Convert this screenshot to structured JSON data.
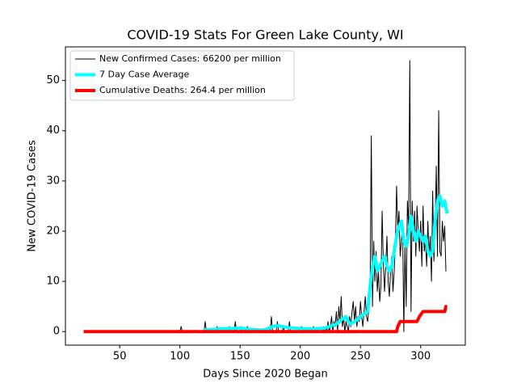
{
  "chart_data": {
    "type": "line",
    "title": "COVID-19 Stats For Green Lake County, WI",
    "xlabel": "Days Since 2020 Began",
    "ylabel": "New COVID-19 Cases",
    "xlim": [
      4.9,
      337.1
    ],
    "xticks": [
      50,
      100,
      150,
      200,
      250,
      300
    ],
    "ylim": [
      -2.7,
      56.7
    ],
    "yticks": [
      0,
      10,
      20,
      30,
      40,
      50
    ],
    "grid": false,
    "legend": "upper left",
    "series": [
      {
        "name": "New Confirmed Cases: 66200 per million",
        "color": "#000000",
        "linewidth": 1,
        "x": [
          20,
          100,
          101,
          102,
          120,
          121,
          122,
          130,
          131,
          132,
          140,
          141,
          142,
          145,
          146,
          147,
          150,
          151,
          152,
          155,
          156,
          157,
          160,
          175,
          176,
          177,
          180,
          181,
          182,
          185,
          186,
          187,
          190,
          191,
          192,
          200,
          201,
          202,
          210,
          211,
          212,
          218,
          219,
          220,
          221,
          222,
          223,
          224,
          225,
          226,
          227,
          228,
          229,
          230,
          231,
          232,
          233,
          234,
          235,
          236,
          237,
          238,
          239,
          240,
          241,
          242,
          243,
          244,
          245,
          246,
          247,
          248,
          249,
          250,
          251,
          252,
          253,
          254,
          255,
          256,
          257,
          258,
          259,
          260,
          261,
          262,
          263,
          264,
          265,
          266,
          267,
          268,
          269,
          270,
          271,
          272,
          273,
          274,
          275,
          276,
          277,
          278,
          279,
          280,
          281,
          282,
          283,
          284,
          285,
          286,
          287,
          288,
          289,
          290,
          291,
          292,
          293,
          294,
          295,
          296,
          297,
          298,
          299,
          300,
          301,
          302,
          303,
          304,
          305,
          306,
          307,
          308,
          309,
          310,
          311,
          312,
          313,
          314,
          315,
          316,
          317,
          318,
          319,
          320,
          321
        ],
        "values": [
          0,
          0,
          1,
          0,
          0,
          2,
          0,
          0,
          1,
          0,
          0,
          1,
          0,
          0,
          2,
          0,
          0,
          1,
          0,
          0,
          1,
          0,
          0,
          0,
          3,
          0,
          0,
          2,
          0,
          0,
          1,
          0,
          0,
          2,
          0,
          0,
          1,
          0,
          0,
          1,
          0,
          0,
          1,
          0,
          1,
          0,
          2,
          0,
          1,
          3,
          0,
          2,
          1,
          4,
          0,
          5,
          2,
          7,
          1,
          3,
          0,
          2,
          1,
          0,
          3,
          1,
          4,
          6,
          2,
          5,
          1,
          3,
          2,
          6,
          3,
          1,
          4,
          7,
          3,
          2,
          5,
          8,
          39,
          5,
          18,
          10,
          16,
          8,
          12,
          6,
          9,
          24,
          14,
          8,
          13,
          19,
          10,
          7,
          12,
          15,
          8,
          12,
          17,
          29,
          20,
          24,
          15,
          18,
          22,
          0,
          17,
          5,
          26,
          21,
          54,
          4,
          26,
          18,
          24,
          15,
          25,
          20,
          16,
          22,
          13,
          25,
          16,
          18,
          13,
          22,
          15,
          19,
          10,
          28,
          14,
          21,
          33,
          15,
          44,
          16,
          15,
          22,
          18,
          21,
          12
        ]
      },
      {
        "name": "7 Day Case Average",
        "color": "#00ffff",
        "linewidth": 4,
        "x": [
          120,
          130,
          140,
          150,
          160,
          170,
          175,
          180,
          185,
          190,
          200,
          210,
          220,
          230,
          235,
          238,
          240,
          242,
          245,
          248,
          250,
          253,
          256,
          258,
          260,
          262,
          264,
          266,
          268,
          270,
          272,
          274,
          276,
          278,
          280,
          282,
          284,
          286,
          288,
          290,
          292,
          294,
          296,
          298,
          300,
          302,
          304,
          306,
          308,
          310,
          312,
          314,
          316,
          318,
          320,
          322
        ],
        "values": [
          0.3,
          0.5,
          0.6,
          0.7,
          0.4,
          0.3,
          0.8,
          1.2,
          1,
          0.8,
          0.6,
          0.5,
          0.7,
          1.5,
          2.5,
          3,
          2,
          1.5,
          2,
          2.5,
          3,
          3.5,
          4,
          9,
          13,
          15,
          12,
          13,
          14,
          15,
          13,
          12,
          13,
          16,
          19,
          21,
          22,
          18,
          17,
          19,
          23,
          20,
          18,
          20,
          19,
          18,
          19,
          16,
          15,
          16,
          22,
          26,
          27,
          25,
          26,
          23.5
        ]
      },
      {
        "name": "Cumulative Deaths: 264.4 per million",
        "color": "#ff0000",
        "linewidth": 4,
        "x": [
          20,
          280,
          281,
          283,
          297,
          299,
          302,
          320,
          321,
          322
        ],
        "values": [
          0,
          0,
          1,
          2,
          2,
          3,
          4,
          4,
          5,
          5
        ]
      }
    ]
  }
}
